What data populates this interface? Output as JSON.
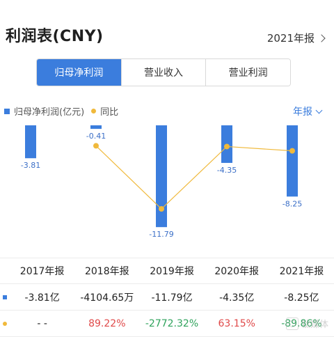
{
  "header": {
    "title": "利润表(CNY)",
    "period": "2021年报"
  },
  "tabs": [
    {
      "label": "归母净利润",
      "active": true
    },
    {
      "label": "营业收入",
      "active": false
    },
    {
      "label": "营业利润",
      "active": false
    }
  ],
  "legend": {
    "series1": "归母净利润(亿元)",
    "series2": "同比"
  },
  "year_selector": "年报",
  "chart_data": {
    "type": "bar",
    "categories": [
      "2017年报",
      "2018年报",
      "2019年报",
      "2020年报",
      "2021年报"
    ],
    "series": [
      {
        "name": "归母净利润(亿元)",
        "type": "bar",
        "values": [
          -3.81,
          -0.41,
          -11.79,
          -4.35,
          -8.25
        ],
        "labels": [
          "-3.81",
          "-0.41",
          "-11.79",
          "-4.35",
          "-8.25"
        ]
      },
      {
        "name": "同比",
        "type": "line",
        "values": [
          null,
          89.22,
          -2772.32,
          63.15,
          -89.86
        ]
      }
    ],
    "colors": {
      "bar": "#3b7ddd",
      "line": "#f0b93b"
    },
    "grid": false
  },
  "table": {
    "years": [
      "2017年报",
      "2018年报",
      "2019年报",
      "2020年报",
      "2021年报"
    ],
    "profit": [
      "-3.81亿",
      "-4104.65万",
      "-11.79亿",
      "-4.35亿",
      "-8.25亿"
    ],
    "yoy": [
      {
        "text": "- -",
        "tone": "none"
      },
      {
        "text": "89.22%",
        "tone": "pos"
      },
      {
        "text": "-2772.32%",
        "tone": "neg"
      },
      {
        "text": "63.15%",
        "tone": "pos"
      },
      {
        "text": "-89.86%",
        "tone": "neg"
      }
    ]
  },
  "watermark": "钛媒体"
}
